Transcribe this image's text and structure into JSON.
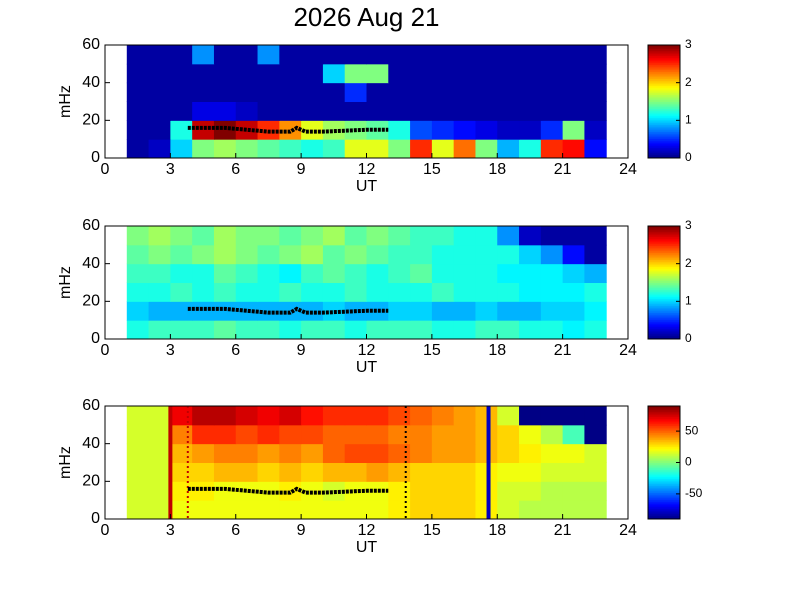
{
  "chart_data": [
    {
      "type": "heatmap",
      "title": "2026 Aug 21",
      "xlabel": "UT",
      "ylabel": "mHz",
      "xlim": [
        0,
        24
      ],
      "xticks": [
        0,
        3,
        6,
        9,
        12,
        15,
        18,
        21,
        24
      ],
      "ylim": [
        0,
        60
      ],
      "yticks": [
        0,
        20,
        40,
        60
      ],
      "x": [
        1,
        2,
        3,
        4,
        5,
        6,
        7,
        8,
        9,
        10,
        11,
        12,
        13,
        14,
        15,
        16,
        17,
        18,
        19,
        20,
        21,
        22,
        23
      ],
      "y": [
        0,
        10,
        20,
        30,
        40,
        50,
        60
      ],
      "z": [
        [
          0.1,
          0.2,
          1.0,
          1.5,
          1.6,
          1.5,
          1.4,
          1.3,
          1.2,
          1.3,
          1.8,
          1.8,
          1.5,
          2.5,
          1.8,
          2.3,
          1.5,
          0.9,
          1.2,
          2.5,
          2.6,
          0.4
        ],
        [
          0.1,
          0.1,
          1.2,
          2.8,
          3.0,
          2.8,
          2.5,
          2.2,
          1.8,
          1.6,
          1.5,
          1.4,
          1.2,
          0.6,
          0.5,
          0.4,
          0.3,
          0.2,
          0.2,
          0.5,
          1.5,
          0.2
        ],
        [
          0.1,
          0.1,
          0.1,
          0.3,
          0.3,
          0.2,
          0.1,
          0.1,
          0.1,
          0.1,
          0.1,
          0.1,
          0.1,
          0.1,
          0.1,
          0.1,
          0.1,
          0.1,
          0.1,
          0.1,
          0.1,
          0.1
        ],
        [
          0.1,
          0.1,
          0.1,
          0.1,
          0.1,
          0.1,
          0.1,
          0.1,
          0.1,
          0.1,
          0.5,
          0.1,
          0.1,
          0.1,
          0.1,
          0.1,
          0.1,
          0.1,
          0.1,
          0.1,
          0.1,
          0.1
        ],
        [
          0.1,
          0.1,
          0.1,
          0.1,
          0.1,
          0.1,
          0.1,
          0.1,
          0.1,
          1.0,
          1.5,
          1.5,
          0.1,
          0.1,
          0.1,
          0.1,
          0.1,
          0.1,
          0.1,
          0.1,
          0.1,
          0.1
        ],
        [
          0.1,
          0.1,
          0.1,
          0.8,
          0.1,
          0.1,
          0.8,
          0.1,
          0.1,
          0.1,
          0.1,
          0.1,
          0.1,
          0.1,
          0.1,
          0.1,
          0.1,
          0.1,
          0.1,
          0.1,
          0.1,
          0.1
        ]
      ],
      "clim": [
        0,
        3
      ],
      "cticks": [
        0,
        1,
        2,
        3
      ],
      "trace": {
        "color": "#000000",
        "x": [
          3.8,
          4.5,
          5.5,
          6.5,
          7.5,
          8.5,
          8.8,
          9.2,
          10,
          11,
          12,
          13
        ],
        "y": [
          16,
          16,
          16,
          15,
          14,
          14,
          16,
          14,
          14,
          14.5,
          15,
          15
        ]
      }
    },
    {
      "type": "heatmap",
      "xlabel": "UT",
      "ylabel": "mHz",
      "xlim": [
        0,
        24
      ],
      "xticks": [
        0,
        3,
        6,
        9,
        12,
        15,
        18,
        21,
        24
      ],
      "ylim": [
        0,
        60
      ],
      "yticks": [
        0,
        20,
        40,
        60
      ],
      "x": [
        1,
        2,
        3,
        4,
        5,
        6,
        7,
        8,
        9,
        10,
        11,
        12,
        13,
        14,
        15,
        16,
        17,
        18,
        19,
        20,
        21,
        22,
        23
      ],
      "y": [
        0,
        10,
        20,
        30,
        40,
        50,
        60
      ],
      "z": [
        [
          1.2,
          1.3,
          1.3,
          1.3,
          1.4,
          1.3,
          1.3,
          1.2,
          1.3,
          1.3,
          1.2,
          1.3,
          1.3,
          1.3,
          1.2,
          1.2,
          1.3,
          1.3,
          1.2,
          1.2,
          1.1,
          1.2
        ],
        [
          1.0,
          0.9,
          0.9,
          0.9,
          0.9,
          0.9,
          0.9,
          0.9,
          0.9,
          1.0,
          0.9,
          0.9,
          1.0,
          1.0,
          0.9,
          0.9,
          1.0,
          0.9,
          0.9,
          1.0,
          1.0,
          1.1
        ],
        [
          1.2,
          1.2,
          1.3,
          1.2,
          1.3,
          1.2,
          1.2,
          1.3,
          1.2,
          1.2,
          1.3,
          1.2,
          1.2,
          1.2,
          1.3,
          1.2,
          1.2,
          1.2,
          1.1,
          1.1,
          1.1,
          1.2
        ],
        [
          1.3,
          1.3,
          1.2,
          1.2,
          1.4,
          1.3,
          1.2,
          1.1,
          1.3,
          1.4,
          1.3,
          1.2,
          1.3,
          1.4,
          1.2,
          1.2,
          1.2,
          1.1,
          1.1,
          1.1,
          1.0,
          0.9
        ],
        [
          1.4,
          1.5,
          1.4,
          1.5,
          1.6,
          1.5,
          1.4,
          1.5,
          1.6,
          1.4,
          1.5,
          1.4,
          1.3,
          1.3,
          1.2,
          1.2,
          1.2,
          1.2,
          1.0,
          0.8,
          0.4,
          0.1
        ],
        [
          1.5,
          1.6,
          1.5,
          1.4,
          1.6,
          1.5,
          1.5,
          1.4,
          1.5,
          1.6,
          1.4,
          1.5,
          1.4,
          1.3,
          1.3,
          1.2,
          1.2,
          0.8,
          0.2,
          0.1,
          0.1,
          0.1
        ]
      ],
      "clim": [
        0,
        3
      ],
      "cticks": [
        0,
        1,
        2,
        3
      ],
      "trace": {
        "color": "#000000",
        "x": [
          3.8,
          4.5,
          5.5,
          6.5,
          7.5,
          8.5,
          8.8,
          9.2,
          10,
          11,
          12,
          13
        ],
        "y": [
          16,
          16,
          16,
          15,
          14,
          14,
          16,
          14,
          14,
          14.5,
          15,
          15
        ]
      }
    },
    {
      "type": "heatmap",
      "xlabel": "UT",
      "ylabel": "mHz",
      "xlim": [
        0,
        24
      ],
      "xticks": [
        0,
        3,
        6,
        9,
        12,
        15,
        18,
        21,
        24
      ],
      "ylim": [
        0,
        60
      ],
      "yticks": [
        0,
        20,
        40,
        60
      ],
      "x": [
        1,
        2,
        3,
        4,
        5,
        6,
        7,
        8,
        9,
        10,
        11,
        12,
        13,
        14,
        15,
        16,
        17,
        18,
        19,
        20,
        21,
        22,
        23
      ],
      "y": [
        0,
        10,
        20,
        30,
        40,
        50,
        60
      ],
      "z": [
        [
          15,
          15,
          20,
          20,
          20,
          20,
          20,
          20,
          20,
          20,
          20,
          20,
          25,
          30,
          30,
          30,
          25,
          15,
          10,
          10,
          10,
          10
        ],
        [
          15,
          15,
          25,
          25,
          20,
          20,
          20,
          25,
          20,
          15,
          20,
          20,
          25,
          30,
          30,
          30,
          25,
          15,
          15,
          10,
          10,
          10
        ],
        [
          15,
          15,
          30,
          30,
          35,
          35,
          30,
          35,
          30,
          35,
          35,
          40,
          35,
          30,
          30,
          30,
          25,
          20,
          20,
          15,
          15,
          15
        ],
        [
          15,
          15,
          35,
          40,
          45,
          45,
          40,
          45,
          40,
          50,
          55,
          55,
          50,
          45,
          40,
          40,
          35,
          30,
          25,
          20,
          20,
          15
        ],
        [
          15,
          15,
          45,
          60,
          60,
          55,
          60,
          55,
          55,
          50,
          50,
          50,
          45,
          45,
          40,
          40,
          35,
          30,
          20,
          10,
          -10,
          -89
        ],
        [
          15,
          15,
          70,
          80,
          80,
          75,
          70,
          75,
          65,
          60,
          60,
          60,
          55,
          50,
          45,
          40,
          35,
          15,
          -89,
          -89,
          -89,
          -89
        ]
      ],
      "clim": [
        -90,
        90
      ],
      "cticks": [
        -50,
        0,
        50
      ],
      "trace": {
        "color": "#000000",
        "x": [
          3.8,
          4.5,
          5.5,
          6.5,
          7.5,
          8.5,
          8.8,
          9.2,
          10,
          11,
          12,
          13
        ],
        "y": [
          16,
          16,
          16,
          15,
          14,
          14,
          16,
          14,
          14,
          14.5,
          15,
          15
        ]
      },
      "vlines": [
        {
          "x": 3,
          "color": "#c00000",
          "dotted": false
        },
        {
          "x": 3.8,
          "color": "#c00000",
          "dotted": true
        },
        {
          "x": 13.8,
          "color": "#000000",
          "dotted": true
        },
        {
          "x": 17.6,
          "color": "#0000c0",
          "dotted": false
        }
      ]
    }
  ]
}
